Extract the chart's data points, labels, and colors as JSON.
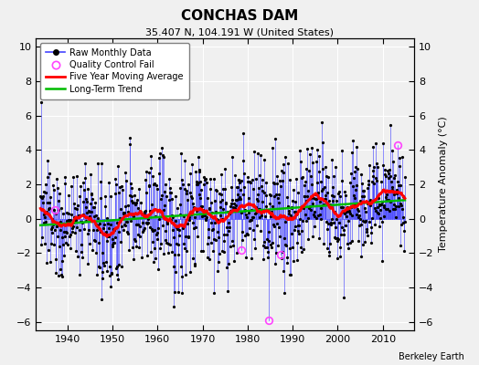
{
  "title": "CONCHAS DAM",
  "subtitle": "35.407 N, 104.191 W (United States)",
  "ylabel": "Temperature Anomaly (°C)",
  "attribution": "Berkeley Earth",
  "xlim": [
    1933,
    2017
  ],
  "ylim": [
    -6.5,
    10.5
  ],
  "yticks": [
    -6,
    -4,
    -2,
    0,
    2,
    4,
    6,
    8,
    10
  ],
  "xticks": [
    1940,
    1950,
    1960,
    1970,
    1980,
    1990,
    2000,
    2010
  ],
  "bg_color": "#f0f0f0",
  "line_color": "#4444ff",
  "ma_color": "#ff0000",
  "trend_color": "#00bb00",
  "qc_color": "#ff44ff",
  "start_year": 1934,
  "end_year": 2015,
  "seed": 137
}
